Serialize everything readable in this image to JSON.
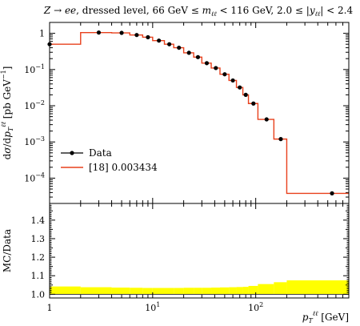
{
  "chart_data": {
    "type": "line",
    "title": "Z → ee, dressed level, 66 GeV ≤ m_ℓℓ < 116 GeV, 2.0 ≤ |y_ℓℓ| < 2.4",
    "x_axis": {
      "label": "p_T^ℓℓ [GeV]",
      "scale": "log",
      "range": [
        1,
        800
      ],
      "ticks": [
        {
          "value": 1,
          "label": "1"
        },
        {
          "value": 10,
          "label": "10^1"
        },
        {
          "value": 100,
          "label": "10^2"
        }
      ]
    },
    "main_panel": {
      "y_axis": {
        "label": "dσ/dp_T^ℓℓ [pb GeV^-1]",
        "scale": "log",
        "range": [
          2e-05,
          2
        ],
        "ticks": [
          {
            "value": 1,
            "label": "1"
          },
          {
            "value": 0.1,
            "label": "10^-1"
          },
          {
            "value": 0.01,
            "label": "10^-2"
          },
          {
            "value": 0.001,
            "label": "10^-3"
          },
          {
            "value": 0.0001,
            "label": "10^-4"
          }
        ]
      },
      "bin_edges": [
        0,
        2,
        4,
        6,
        8,
        10,
        13,
        16,
        20,
        25,
        30,
        37,
        45,
        55,
        65,
        75,
        85,
        105,
        150,
        200,
        900
      ],
      "series": [
        {
          "name": "Data",
          "style": "points",
          "color": "#000000",
          "x": [
            1,
            3,
            5,
            7,
            9,
            11.5,
            14.5,
            18,
            22.5,
            27.5,
            33.5,
            41,
            50,
            60,
            70,
            80,
            95,
            127.5,
            175,
            550
          ],
          "y": [
            0.5,
            1.05,
            1.03,
            0.9,
            0.78,
            0.63,
            0.5,
            0.4,
            0.29,
            0.22,
            0.15,
            0.11,
            0.074,
            0.05,
            0.032,
            0.02,
            0.0115,
            0.0042,
            0.0012,
            3.8e-05
          ]
        },
        {
          "name": "[18] 0.003434",
          "style": "step",
          "color": "#e8401c",
          "values": [
            0.5,
            1.05,
            1.03,
            0.9,
            0.78,
            0.63,
            0.5,
            0.4,
            0.29,
            0.22,
            0.15,
            0.11,
            0.074,
            0.05,
            0.032,
            0.02,
            0.0115,
            0.0042,
            0.0012,
            3.8e-05
          ]
        }
      ],
      "legend_position": "lower-left"
    },
    "ratio_panel": {
      "y_axis": {
        "label": "MC/Data",
        "range": [
          0.98,
          1.49
        ],
        "ticks": [
          {
            "value": 1.0,
            "label": "1.0"
          },
          {
            "value": 1.1,
            "label": "1.1"
          },
          {
            "value": 1.2,
            "label": "1.2"
          },
          {
            "value": 1.3,
            "label": "1.3"
          },
          {
            "value": 1.4,
            "label": "1.4"
          }
        ]
      },
      "band": {
        "color": "#ffff00",
        "bin_edges": [
          0,
          2,
          4,
          6,
          8,
          10,
          13,
          16,
          20,
          25,
          30,
          37,
          45,
          55,
          65,
          75,
          85,
          105,
          150,
          200,
          900
        ],
        "upper": [
          1.042,
          1.038,
          1.036,
          1.035,
          1.034,
          1.034,
          1.034,
          1.034,
          1.035,
          1.035,
          1.035,
          1.036,
          1.037,
          1.038,
          1.039,
          1.04,
          1.045,
          1.055,
          1.065,
          1.075
        ],
        "lower": [
          1.0,
          1.0,
          1.0,
          1.0,
          1.0,
          1.0,
          1.0,
          1.0,
          1.0,
          1.0,
          1.0,
          1.0,
          1.0,
          1.0,
          1.0,
          1.0,
          1.0,
          1.0,
          1.0,
          1.0
        ]
      },
      "reference_line": 1.0
    }
  }
}
